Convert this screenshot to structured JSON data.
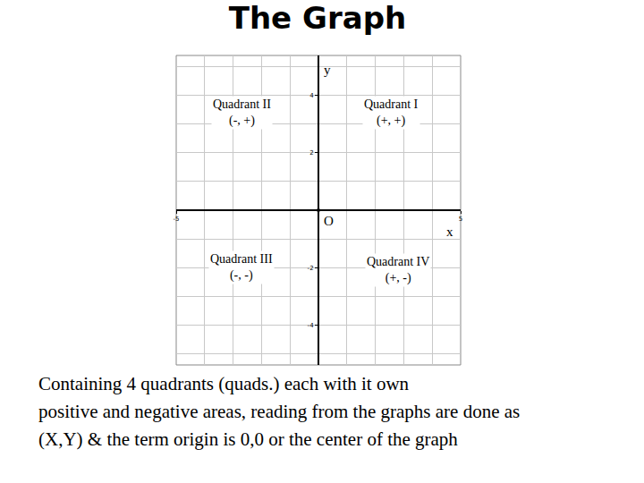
{
  "chart_data": {
    "type": "scatter",
    "title": "The Graph",
    "x": [
      0
    ],
    "values": [
      0
    ],
    "color": "#000000",
    "xlabel": "x",
    "ylabel": "y",
    "origin_label": "O",
    "xlim": [
      -5,
      5
    ],
    "ylim": [
      -5.4,
      5.4
    ],
    "xticks": [
      -5,
      5
    ],
    "yticks": [
      -4,
      -2,
      2,
      4
    ],
    "grid": true,
    "annotations": [
      {
        "text": "Quadrant I",
        "signs": "(+, +)"
      },
      {
        "text": "Quadrant II",
        "signs": "(-, +)"
      },
      {
        "text": "Quadrant III",
        "signs": "(-, -)"
      },
      {
        "text": "Quadrant IV",
        "signs": "(+, -)"
      }
    ],
    "caption": [
      "Containing 4 quadrants (quads.) each with it own",
      "positive and negative areas, reading from the graphs are done as",
      "(X,Y) & the term origin is 0,0 or the center of the graph"
    ]
  }
}
